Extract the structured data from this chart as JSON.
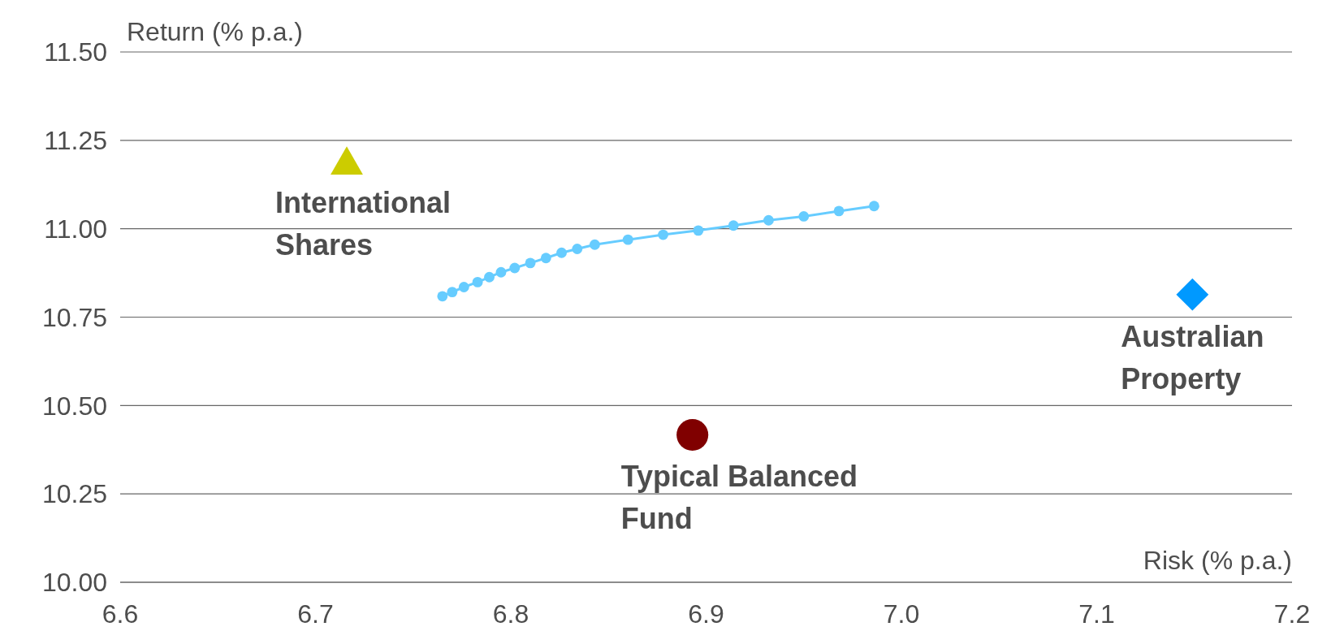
{
  "chart_data": {
    "type": "scatter",
    "xlabel": "Risk (% p.a.)",
    "ylabel": "Return (% p.a.)",
    "xlim": [
      6.6,
      7.2
    ],
    "xticks": [
      {
        "value": 6.6,
        "label": "6.6"
      },
      {
        "value": 6.7,
        "label": "6.7"
      },
      {
        "value": 6.8,
        "label": "6.8"
      },
      {
        "value": 6.9,
        "label": "6.9"
      },
      {
        "value": 7.0,
        "label": "7.0"
      },
      {
        "value": 7.1,
        "label": "7.1"
      },
      {
        "value": 7.2,
        "label": "7.2"
      }
    ],
    "ylim": [
      10.0,
      11.5
    ],
    "yticks": [
      {
        "value": 10.0,
        "label": "10.00"
      },
      {
        "value": 10.25,
        "label": "10.25"
      },
      {
        "value": 10.5,
        "label": "10.50"
      },
      {
        "value": 10.75,
        "label": "10.75"
      },
      {
        "value": 11.0,
        "label": "11.00"
      },
      {
        "value": 11.25,
        "label": "11.25"
      },
      {
        "value": 11.5,
        "label": "11.50"
      }
    ],
    "grid": "y",
    "series": [
      {
        "type": "line",
        "color": "#66ccff",
        "marker": "circle",
        "line_style": "solid",
        "x": [
          6.765,
          6.77,
          6.776,
          6.783,
          6.789,
          6.795,
          6.802,
          6.81,
          6.818,
          6.826,
          6.834,
          6.843,
          6.86,
          6.878,
          6.896,
          6.914,
          6.932,
          6.95,
          6.968,
          6.986
        ],
        "values": [
          10.809,
          10.821,
          10.835,
          10.849,
          10.863,
          10.877,
          10.889,
          10.903,
          10.917,
          10.932,
          10.943,
          10.955,
          10.969,
          10.983,
          10.995,
          11.009,
          11.024,
          11.035,
          11.05,
          11.064
        ]
      },
      {
        "type": "scatter",
        "name": "International Shares",
        "color": "#cccc00",
        "marker": "triangle",
        "x": [
          6.716
        ],
        "values": [
          11.193
        ]
      },
      {
        "type": "scatter",
        "name": "Australian Property",
        "color": "#0099ff",
        "marker": "diamond",
        "x": [
          7.149
        ],
        "values": [
          10.814
        ]
      },
      {
        "type": "scatter",
        "name": "Typical Balanced Fund",
        "color": "#800000",
        "marker": "circle",
        "x": [
          6.893
        ],
        "values": [
          10.417
        ]
      }
    ]
  }
}
